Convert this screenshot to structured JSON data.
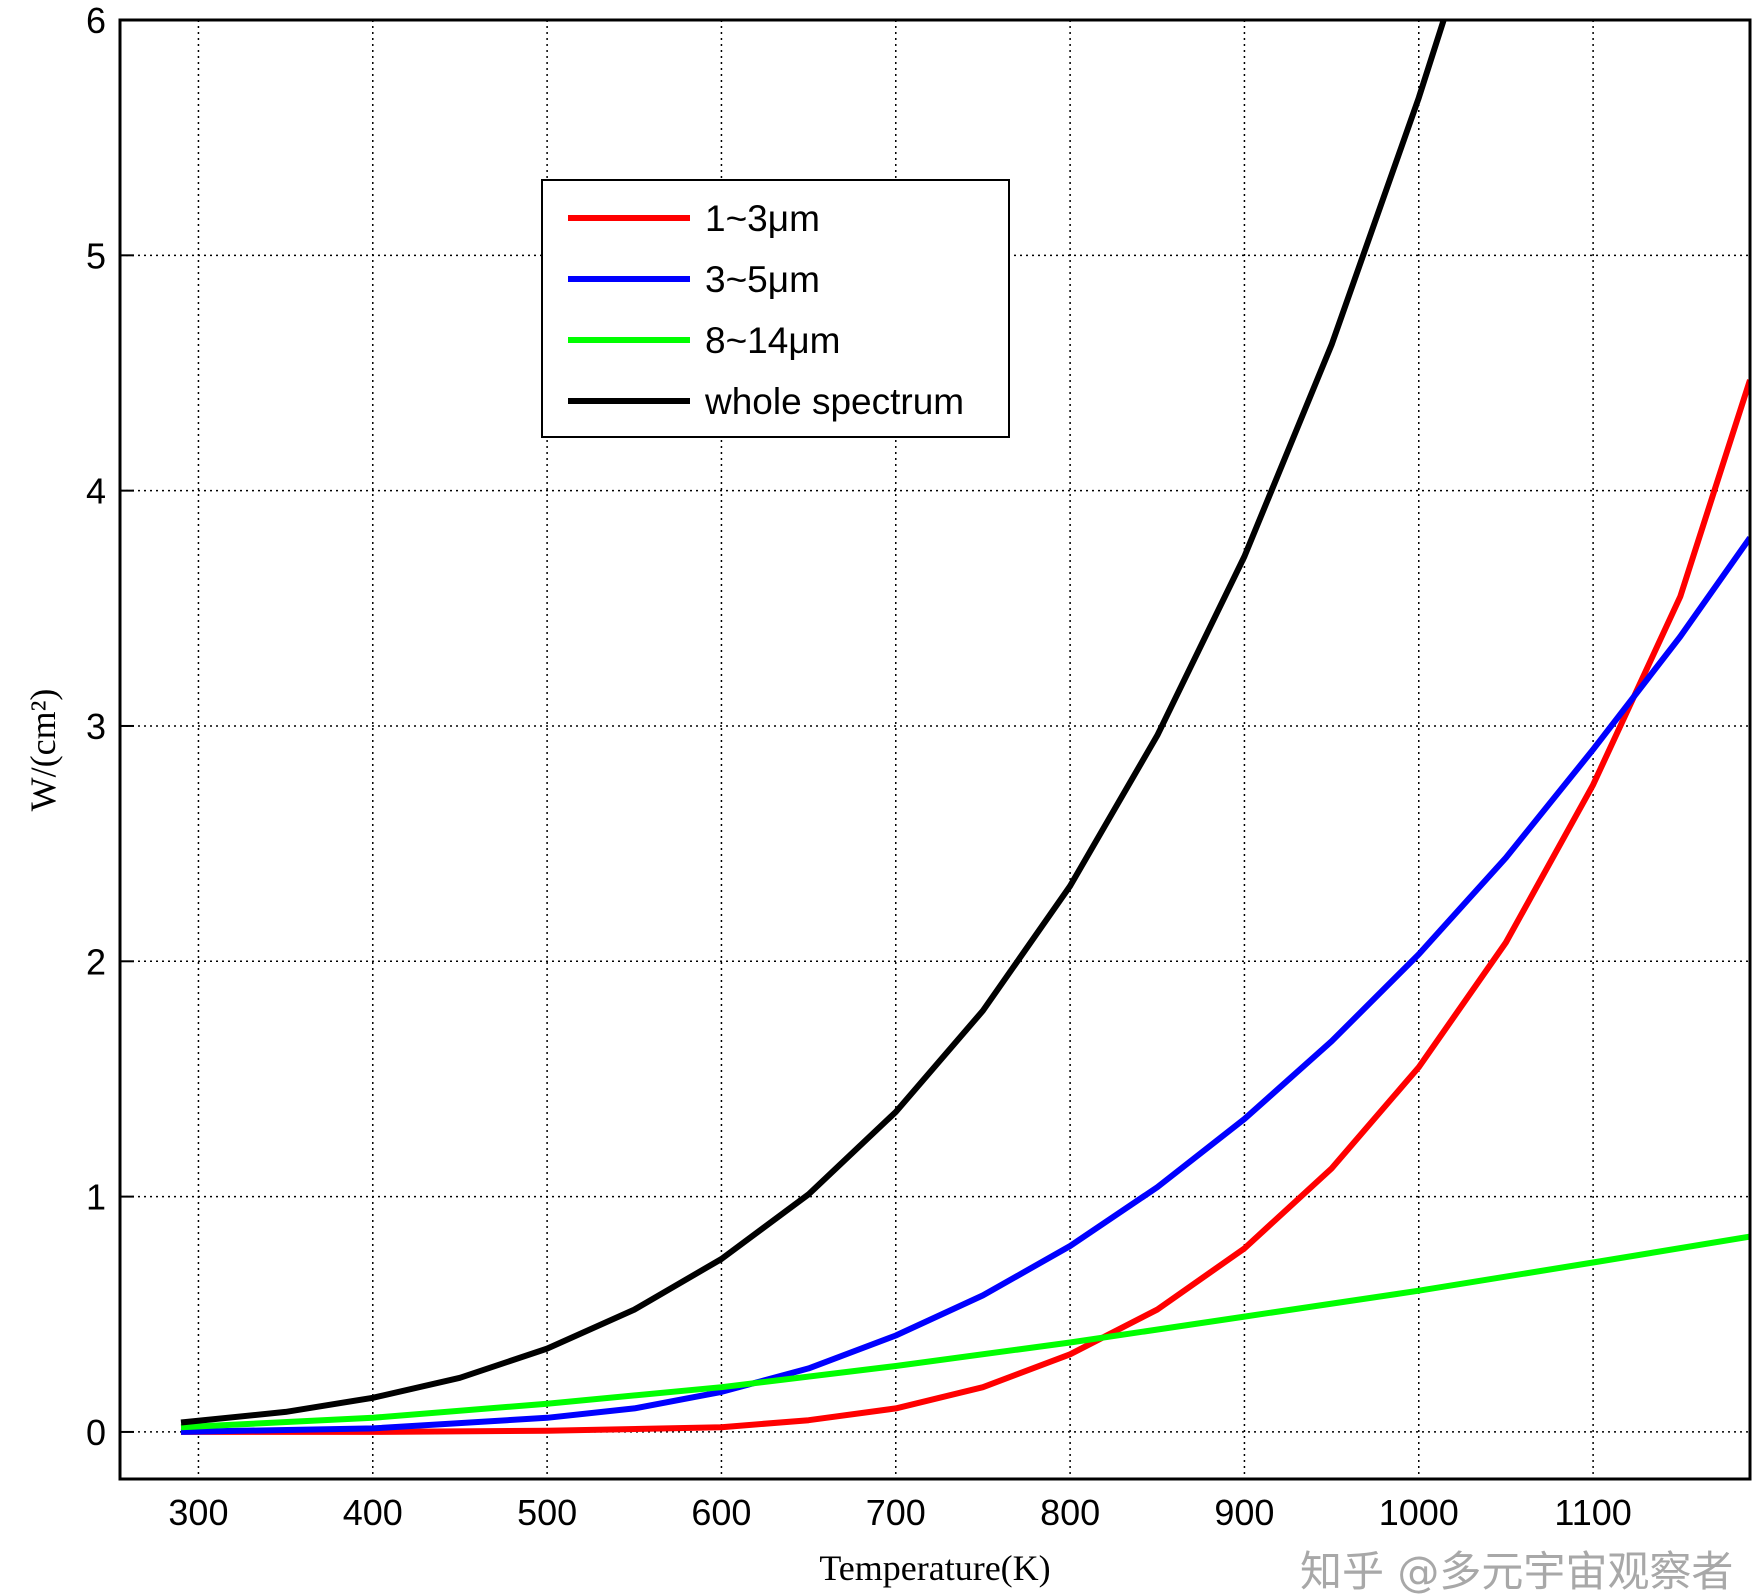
{
  "chart_data": {
    "type": "line",
    "xlabel": "Temperature(K)",
    "ylabel": "W/(cm²)",
    "xlim": [
      255,
      1190
    ],
    "ylim": [
      -0.2,
      6
    ],
    "xticks": [
      300,
      400,
      500,
      600,
      700,
      800,
      900,
      1000,
      1100
    ],
    "yticks": [
      0,
      1,
      2,
      3,
      4,
      5,
      6
    ],
    "grid": true,
    "legend_position": "top-center",
    "series": [
      {
        "name": "1~3μm",
        "color": "#ff0000",
        "x": [
          290,
          400,
          500,
          600,
          650,
          700,
          750,
          800,
          850,
          900,
          950,
          1000,
          1050,
          1100,
          1150,
          1190
        ],
        "y": [
          0,
          0,
          0.005,
          0.02,
          0.05,
          0.1,
          0.19,
          0.33,
          0.52,
          0.78,
          1.12,
          1.55,
          2.08,
          2.75,
          3.55,
          4.47
        ]
      },
      {
        "name": "3~5μm",
        "color": "#0000ff",
        "x": [
          290,
          400,
          500,
          550,
          600,
          650,
          700,
          750,
          800,
          850,
          900,
          950,
          1000,
          1050,
          1100,
          1150,
          1190
        ],
        "y": [
          0,
          0.015,
          0.06,
          0.1,
          0.17,
          0.27,
          0.41,
          0.58,
          0.79,
          1.04,
          1.33,
          1.66,
          2.03,
          2.44,
          2.9,
          3.38,
          3.8
        ]
      },
      {
        "name": "8~14μm",
        "color": "#00ff00",
        "x": [
          290,
          400,
          500,
          600,
          700,
          800,
          900,
          1000,
          1100,
          1190
        ],
        "y": [
          0.02,
          0.06,
          0.12,
          0.19,
          0.28,
          0.38,
          0.49,
          0.6,
          0.72,
          0.83
        ]
      },
      {
        "name": "whole spectrum",
        "color": "#000000",
        "x": [
          290,
          350,
          400,
          450,
          500,
          550,
          600,
          650,
          700,
          750,
          800,
          850,
          900,
          950,
          1000,
          1016
        ],
        "y": [
          0.04,
          0.085,
          0.145,
          0.23,
          0.354,
          0.52,
          0.735,
          1.01,
          1.36,
          1.79,
          2.32,
          2.96,
          3.72,
          4.62,
          5.67,
          6.04
        ]
      }
    ],
    "watermark": "知乎 @多元宇宙观察者"
  }
}
